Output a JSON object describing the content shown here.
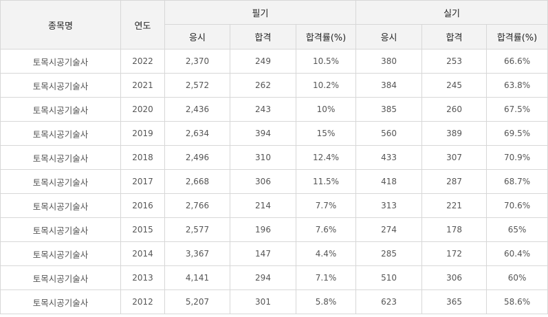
{
  "headers": {
    "subject": "종목명",
    "year": "연도",
    "written": "필기",
    "practical": "실기",
    "applicants": "응시",
    "passed": "합격",
    "rate": "합격률(%)"
  },
  "rows": [
    {
      "name": "토목시공기술사",
      "year": "2022",
      "w_app": "2,370",
      "w_pass": "249",
      "w_rate": "10.5%",
      "p_app": "380",
      "p_pass": "253",
      "p_rate": "66.6%"
    },
    {
      "name": "토목시공기술사",
      "year": "2021",
      "w_app": "2,572",
      "w_pass": "262",
      "w_rate": "10.2%",
      "p_app": "384",
      "p_pass": "245",
      "p_rate": "63.8%"
    },
    {
      "name": "토목시공기술사",
      "year": "2020",
      "w_app": "2,436",
      "w_pass": "243",
      "w_rate": "10%",
      "p_app": "385",
      "p_pass": "260",
      "p_rate": "67.5%"
    },
    {
      "name": "토목시공기술사",
      "year": "2019",
      "w_app": "2,634",
      "w_pass": "394",
      "w_rate": "15%",
      "p_app": "560",
      "p_pass": "389",
      "p_rate": "69.5%"
    },
    {
      "name": "토목시공기술사",
      "year": "2018",
      "w_app": "2,496",
      "w_pass": "310",
      "w_rate": "12.4%",
      "p_app": "433",
      "p_pass": "307",
      "p_rate": "70.9%"
    },
    {
      "name": "토목시공기술사",
      "year": "2017",
      "w_app": "2,668",
      "w_pass": "306",
      "w_rate": "11.5%",
      "p_app": "418",
      "p_pass": "287",
      "p_rate": "68.7%"
    },
    {
      "name": "토목시공기술사",
      "year": "2016",
      "w_app": "2,766",
      "w_pass": "214",
      "w_rate": "7.7%",
      "p_app": "313",
      "p_pass": "221",
      "p_rate": "70.6%"
    },
    {
      "name": "토목시공기술사",
      "year": "2015",
      "w_app": "2,577",
      "w_pass": "196",
      "w_rate": "7.6%",
      "p_app": "274",
      "p_pass": "178",
      "p_rate": "65%"
    },
    {
      "name": "토목시공기술사",
      "year": "2014",
      "w_app": "3,367",
      "w_pass": "147",
      "w_rate": "4.4%",
      "p_app": "285",
      "p_pass": "172",
      "p_rate": "60.4%"
    },
    {
      "name": "토목시공기술사",
      "year": "2013",
      "w_app": "4,141",
      "w_pass": "294",
      "w_rate": "7.1%",
      "p_app": "510",
      "p_pass": "306",
      "p_rate": "60%"
    },
    {
      "name": "토목시공기술사",
      "year": "2012",
      "w_app": "5,207",
      "w_pass": "301",
      "w_rate": "5.8%",
      "p_app": "623",
      "p_pass": "365",
      "p_rate": "58.6%"
    }
  ]
}
